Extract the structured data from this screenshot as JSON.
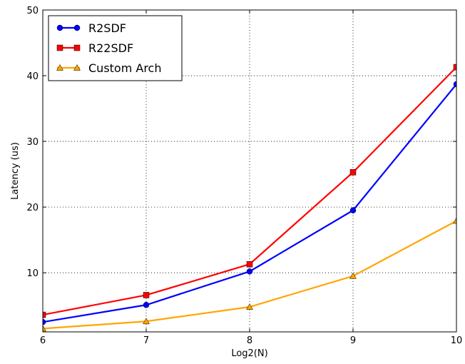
{
  "chart_data": {
    "type": "line",
    "xlabel": "Log2(N)",
    "ylabel": "Latency (us)",
    "x": [
      6,
      7,
      8,
      9,
      10
    ],
    "xlim": [
      6,
      10
    ],
    "ylim": [
      1,
      50
    ],
    "xticks": [
      "6",
      "7",
      "8",
      "9",
      "10"
    ],
    "yticks": [
      10,
      20,
      30,
      40,
      50
    ],
    "ytick_labels": [
      "10",
      "20",
      "30",
      "40",
      "50"
    ],
    "grid": true,
    "grid_style": "dotted",
    "legend_position": "top-left",
    "series": [
      {
        "name": "R2SDF",
        "values": [
          2.5,
          5.1,
          10.2,
          19.5,
          38.7
        ],
        "color": "#0000ff",
        "marker": "circle"
      },
      {
        "name": "R22SDF",
        "values": [
          3.6,
          6.6,
          11.3,
          25.3,
          41.3
        ],
        "color": "#ff0000",
        "marker": "square"
      },
      {
        "name": "Custom Arch",
        "values": [
          1.5,
          2.6,
          4.8,
          9.5,
          17.9
        ],
        "color": "#ffa500",
        "marker": "triangle"
      }
    ]
  }
}
